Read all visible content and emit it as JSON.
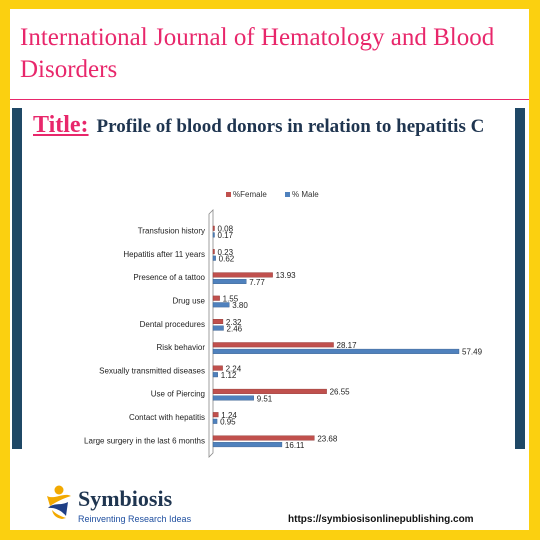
{
  "journal": {
    "name": "International Journal of Hematology and Blood Disorders"
  },
  "figure": {
    "label": "Title:",
    "caption": "Profile of blood donors in relation to hepatitis C"
  },
  "footer": {
    "brand": "Symbiosis",
    "tagline": "Reinventing Research Ideas",
    "url": "https://symbiosisonlinepublishing.com"
  },
  "colors": {
    "accent": "#e8276b",
    "navy": "#1f4866",
    "frame": "#fbd010",
    "female": "#c0504d",
    "male": "#4f81bd"
  },
  "chart_data": {
    "type": "bar",
    "orientation": "horizontal",
    "categories": [
      "Transfusion history",
      "Hepatitis after 11 years",
      "Presence of a tattoo",
      "Drug use",
      "Dental procedures",
      "Risk behavior",
      "Sexually transmitted diseases",
      "Use of Piercing",
      "Contact with hepatitis",
      "Large surgery in the last 6 months"
    ],
    "series": [
      {
        "name": "%Female",
        "color": "#c0504d",
        "values": [
          0.08,
          0.23,
          13.93,
          1.55,
          2.32,
          28.17,
          2.24,
          26.55,
          1.24,
          23.68
        ],
        "labels": [
          "0.08",
          "0.23",
          "13.93",
          "1.55",
          "2.32",
          "28.17",
          "2.24",
          "26.55",
          "1.24",
          "23.68"
        ]
      },
      {
        "name": "% Male",
        "color": "#4f81bd",
        "values": [
          0.17,
          0.62,
          7.77,
          3.8,
          2.46,
          57.49,
          1.12,
          9.51,
          0.95,
          16.11
        ],
        "labels": [
          "0.17",
          "0.62",
          "7.77",
          "3.80",
          "2.46",
          "57.49",
          "1.12",
          "9.51",
          "0.95",
          "16.11"
        ]
      }
    ],
    "xlim": [
      0,
      60
    ],
    "legend": "top-center",
    "grid": false
  }
}
